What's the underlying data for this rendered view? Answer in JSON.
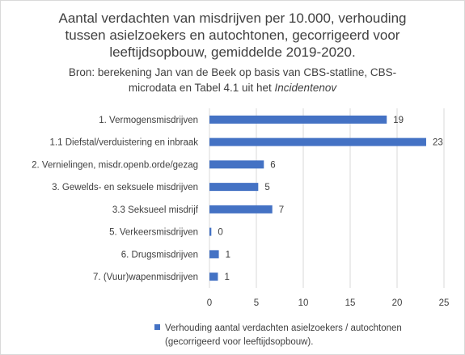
{
  "title_lines": [
    "Aantal verdachten van misdrijven per 10.000, verhouding",
    "tussen asielzoekers en autochtonen, gecorrigeerd voor",
    "leeftijdsopbouw, gemiddelde 2019-2020."
  ],
  "subtitle": {
    "line1": "Bron: berekening Jan van de Beek op basis van CBS-statline, CBS-",
    "line2_prefix": "microdata en Tabel 4.1 uit het ",
    "line2_italic": "Incidentenov"
  },
  "colors": {
    "bar": "#4472c4",
    "gridline": "#d9d9d9",
    "text": "#404040"
  },
  "chart_data": {
    "type": "bar",
    "orientation": "horizontal",
    "categories": [
      "1. Vermogensmisdrijven",
      "1.1 Diefstal/verduistering en inbraak",
      "2. Vernielingen, misdr.openb.orde/gezag",
      "3. Gewelds- en seksuele misdrijven",
      "3.3 Seksueel misdrijf",
      "5. Verkeersmisdrijven",
      "6. Drugsmisdrijven",
      "7. (Vuur)wapenmisdrijven"
    ],
    "values": [
      18.9,
      23.1,
      5.8,
      5.2,
      6.7,
      0.2,
      1.0,
      0.9
    ],
    "data_labels": [
      "19",
      "23",
      "6",
      "5",
      "7",
      "0",
      "1",
      "1"
    ],
    "x_ticks": [
      "0",
      "5",
      "10",
      "15",
      "20",
      "25"
    ],
    "xlim": [
      0,
      25
    ],
    "grid": true,
    "legend_position": "bottom",
    "series": [
      {
        "name_line1": "Verhouding aantal verdachten asielzoekers / autochtonen",
        "name_line2": "(gecorrigeerd voor leeftijdsopbouw)."
      }
    ]
  }
}
